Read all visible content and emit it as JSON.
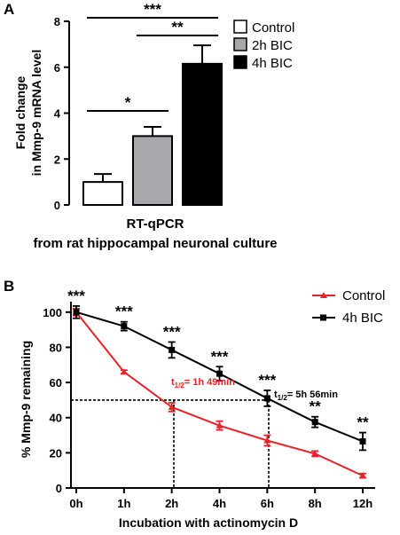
{
  "chart_data": [
    {
      "panel": "A",
      "type": "bar",
      "categories": [
        "Control",
        "2h BIC",
        "4h BIC"
      ],
      "values": [
        1.0,
        3.0,
        6.15
      ],
      "errors": [
        0.35,
        0.4,
        0.8
      ],
      "colors": [
        "#ffffff",
        "#a8a8ac",
        "#000000"
      ],
      "ylabel_line1": "Fold change",
      "ylabel_line2": "in Mmp-9 mRNA level",
      "ylim": [
        0,
        8
      ],
      "yticks": [
        "0",
        "2",
        "4",
        "6",
        "8"
      ],
      "legend": [
        "Control",
        "2h BIC",
        "4h BIC"
      ],
      "legend_position": "top-right",
      "significance": [
        {
          "from": 0,
          "to": 1,
          "label": "*"
        },
        {
          "from": 1,
          "to": 2,
          "label": "**"
        },
        {
          "from": 0,
          "to": 2,
          "label": "***"
        }
      ],
      "caption_line1": "RT-qPCR",
      "caption_line2": "from rat hippocampal neuronal culture"
    },
    {
      "panel": "B",
      "type": "line",
      "x": [
        "0h",
        "1h",
        "2h",
        "4h",
        "6h",
        "8h",
        "12h"
      ],
      "series": [
        {
          "name": "Control",
          "color": "#e8232a",
          "marker": "triangle",
          "values": [
            100,
            66,
            46,
            35.5,
            27,
            19.5,
            7
          ],
          "errors": [
            2,
            1,
            2.5,
            2.5,
            3,
            1.5,
            1.2
          ]
        },
        {
          "name": "4h BIC",
          "color": "#000000",
          "marker": "square",
          "values": [
            100,
            92,
            78.5,
            65,
            51,
            37.5,
            26.5
          ],
          "errors": [
            3.5,
            2.5,
            4.5,
            4,
            4.5,
            3,
            5
          ]
        }
      ],
      "significance": [
        "***",
        "***",
        "***",
        "***",
        "***",
        "**",
        "**"
      ],
      "ylabel": "% Mmp-9 remaining",
      "xlabel": "Incubation with actinomycin D",
      "ylim": [
        0,
        110
      ],
      "yticks": [
        "0",
        "20",
        "40",
        "60",
        "80",
        "100"
      ],
      "legend_position": "top-right",
      "half_life": [
        {
          "series": "Control",
          "label": "= 1h 49min",
          "x_index": 1.91
        },
        {
          "series": "4h BIC",
          "label": "= 5h 56min",
          "x_index": 3.97
        }
      ],
      "half_life_symbol": "t",
      "half_life_subscript": "1/2"
    }
  ]
}
